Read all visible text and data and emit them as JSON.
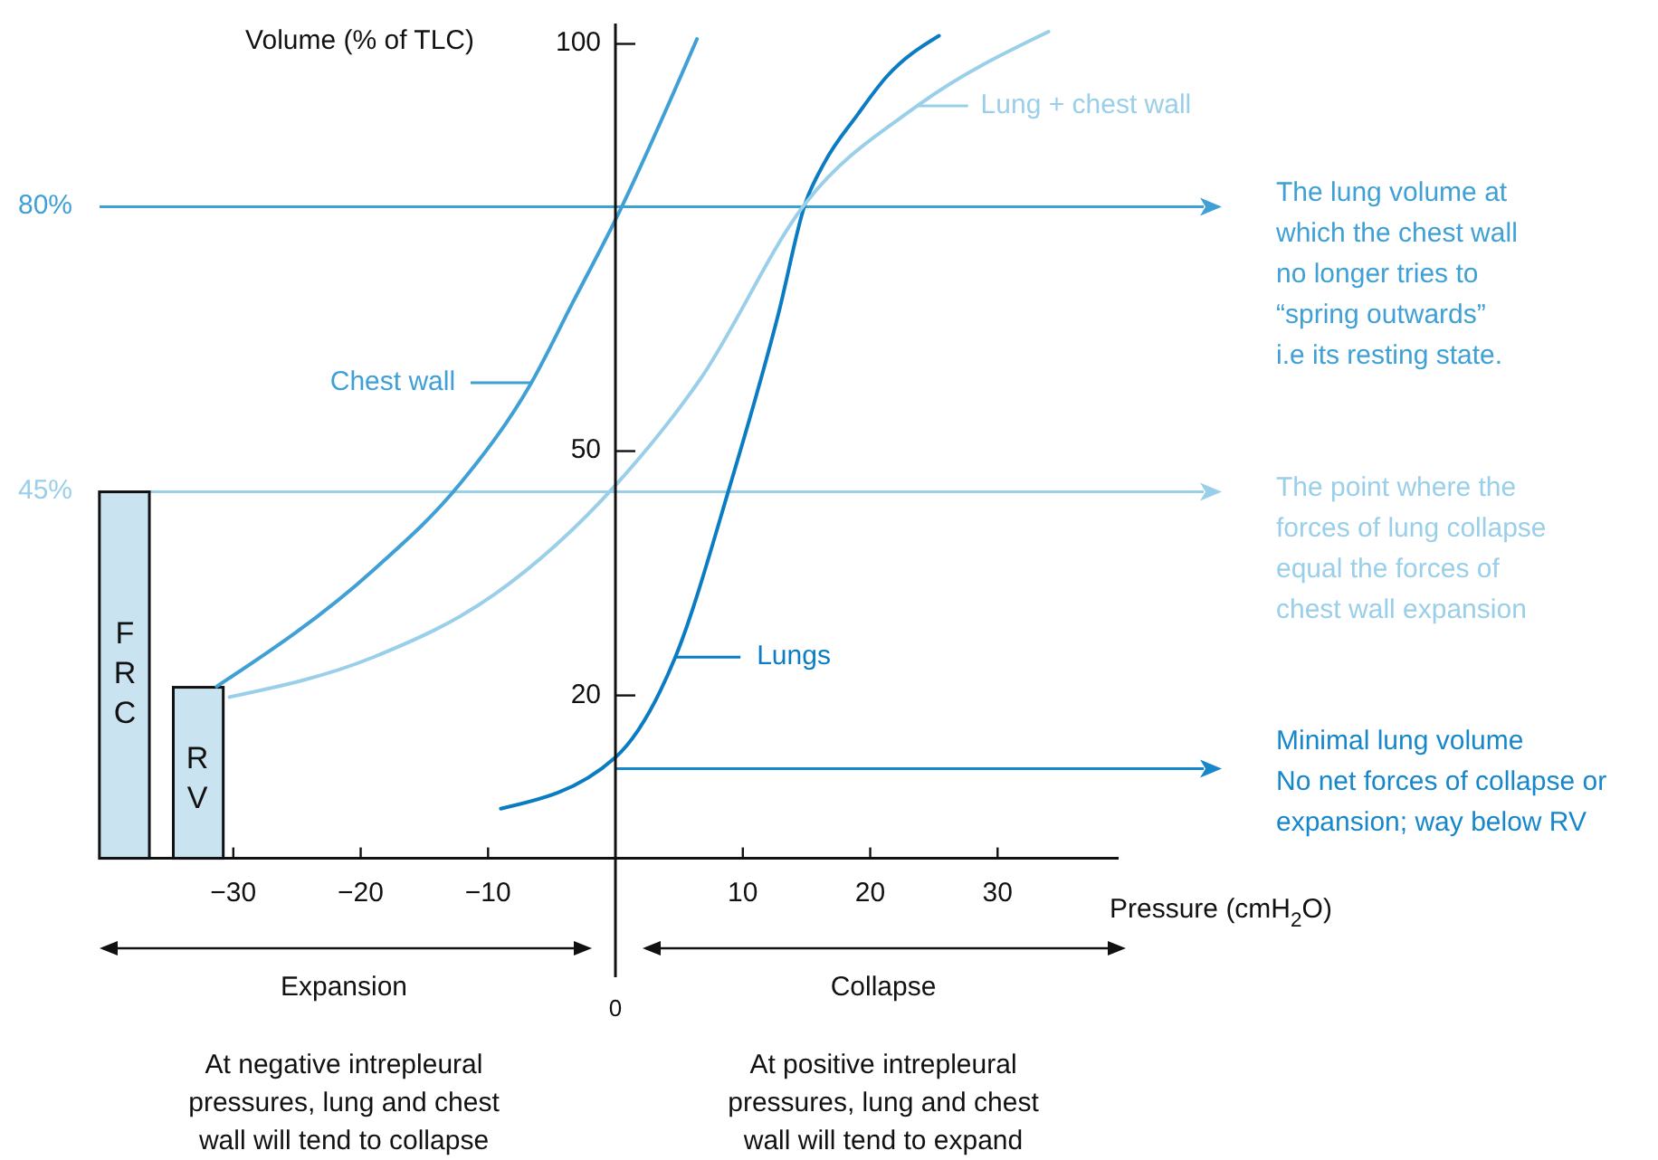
{
  "chart_data": {
    "type": "line",
    "xlabel": "Pressure (cmH$_{2}$O)",
    "ylabel": "Volume (% of TLC)",
    "xlim": [
      -40.5,
      39.5
    ],
    "ylim": [
      -14.6,
      102.5
    ],
    "xticks": [
      {
        "value": -30,
        "label": "−30"
      },
      {
        "value": -20,
        "label": "−20"
      },
      {
        "value": -10,
        "label": "−10"
      },
      10,
      20,
      30
    ],
    "yticks": [
      20,
      50,
      100
    ],
    "series": [
      {
        "type": "bar",
        "color": "#c9e3f1",
        "x": [
          -38.55,
          -32.75
        ],
        "values": [
          45,
          21
        ]
      },
      {
        "name": "Chest wall",
        "color": "#3fa0d6",
        "x": [
          -31.3,
          -19,
          -12.3,
          -6.6,
          -3.3,
          0,
          6.4
        ],
        "values": [
          21.1,
          35.4,
          45.8,
          58.4,
          68.4,
          78.4,
          100.6
        ]
      },
      {
        "name": "Lungs",
        "color": "#0a7cc4",
        "x": [
          -9,
          0,
          4.7,
          9,
          12.8,
          14.9,
          16.4,
          19,
          21.3,
          25.4
        ],
        "values": [
          6.1,
          12.4,
          24.7,
          45.8,
          66.9,
          80.4,
          85.4,
          91.3,
          96,
          101
        ]
      },
      {
        "name": "Lung + chest wall",
        "color": "#9acfea",
        "x": [
          -30.3,
          -19,
          -9.5,
          0,
          6.6,
          14.9,
          23.7,
          34
        ],
        "values": [
          19.8,
          24.7,
          32.4,
          45.8,
          58.7,
          80.4,
          92.4,
          101.5
        ]
      }
    ],
    "ref_lines": [
      {
        "axis": "y",
        "value": 80,
        "color": "#3fa0d6",
        "label": "The lung volume at\nwhich the chest wall\nno longer tries to\n“spring outwards”\ni.e its resting state."
      },
      {
        "axis": "y",
        "value": 45,
        "color": "#9acfea",
        "label": "The point where the\nforces of lung collapse\nequal the forces of\nchest wall expansion"
      },
      {
        "axis": "y",
        "value": 11,
        "color": "#1787cc",
        "label": "Minimal lung volume\nNo net forces of collapse or\nexpansion; way below RV"
      }
    ],
    "annotations": [
      "80%",
      "45%",
      "FRC",
      "RV",
      "0",
      "Expansion",
      "Collapse",
      "At negative intrepleural\npressures, lung and chest\nwall will tend to collapse",
      "At positive intrepleural\npressures, lung and chest\nwall will tend to expand"
    ],
    "legend": "top right",
    "grid": false
  }
}
